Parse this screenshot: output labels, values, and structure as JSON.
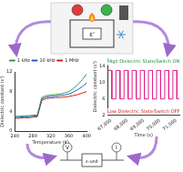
{
  "diagram": {
    "top_label": "ε'",
    "bottom_labels": [
      "ε-unit",
      "V",
      "I"
    ]
  },
  "chart_data": [
    {
      "type": "line",
      "x_label": "Temperature (K)",
      "y_label": "Dielectric constant (ε')",
      "x": [
        240,
        250,
        260,
        270,
        280,
        290,
        300,
        310,
        320,
        330,
        340,
        350,
        360,
        370,
        380,
        390,
        400
      ],
      "series": [
        {
          "name": "1 kHz",
          "color": "#2e9a4a",
          "values": [
            3,
            3,
            3.1,
            3.1,
            3.2,
            3.3,
            6.8,
            7.2,
            7.3,
            7.4,
            7.5,
            7.7,
            8.0,
            8.6,
            9.4,
            10.4,
            11.6
          ]
        },
        {
          "name": "10 kHz",
          "color": "#1f5fd0",
          "values": [
            2.8,
            2.8,
            2.9,
            2.9,
            3.0,
            3.1,
            6.5,
            6.9,
            7.0,
            7.1,
            7.2,
            7.3,
            7.5,
            7.9,
            8.4,
            9.0,
            9.8
          ]
        },
        {
          "name": "1 MHz",
          "color": "#d02020",
          "values": [
            2.6,
            2.6,
            2.7,
            2.7,
            2.8,
            2.9,
            6.2,
            6.6,
            6.7,
            6.8,
            6.8,
            6.9,
            7.0,
            7.2,
            7.4,
            7.7,
            8.0
          ]
        }
      ],
      "xlim": [
        240,
        400
      ],
      "xticks": [
        240,
        280,
        320,
        360,
        400
      ],
      "ylim": [
        0,
        12
      ],
      "yticks": [
        0,
        4,
        8,
        12
      ],
      "legend": "top",
      "grid": false
    },
    {
      "type": "line",
      "x_label": "Time (s)",
      "y_label": "Dielectric constant (ε')",
      "x": [
        66800,
        67050,
        67050,
        67300,
        67300,
        67550,
        67550,
        67800,
        67800,
        68050,
        68050,
        68300,
        68300,
        68550,
        68550,
        68800,
        68800,
        69050,
        69050,
        69300,
        69300,
        69550,
        69550,
        69800,
        69800,
        70050,
        70050,
        70300,
        70300,
        70550,
        70550,
        70800,
        70800,
        71050,
        71050,
        71200
      ],
      "series": [
        {
          "name": null,
          "color": "#e0208a",
          "values": [
            13,
            13,
            6,
            6,
            13,
            13,
            6,
            6,
            13,
            13,
            6,
            6,
            13,
            13,
            6,
            6,
            13,
            13,
            6,
            6,
            13,
            13,
            6,
            6,
            13,
            13,
            6,
            6,
            13,
            13,
            6,
            6,
            13,
            13,
            6,
            6
          ]
        }
      ],
      "xlim": [
        66800,
        71200
      ],
      "xticks": [
        67000,
        68000,
        69000,
        70000,
        71000
      ],
      "ylim": [
        2,
        16
      ],
      "yticks": [
        2,
        6,
        10,
        14
      ],
      "annotations": [
        {
          "text": "High Dielectric State/Switch ON",
          "color": "#1a8a3a"
        },
        {
          "text": "Low Dielectric State/Switch OFF",
          "color": "#d02020"
        }
      ],
      "grid": false
    }
  ]
}
